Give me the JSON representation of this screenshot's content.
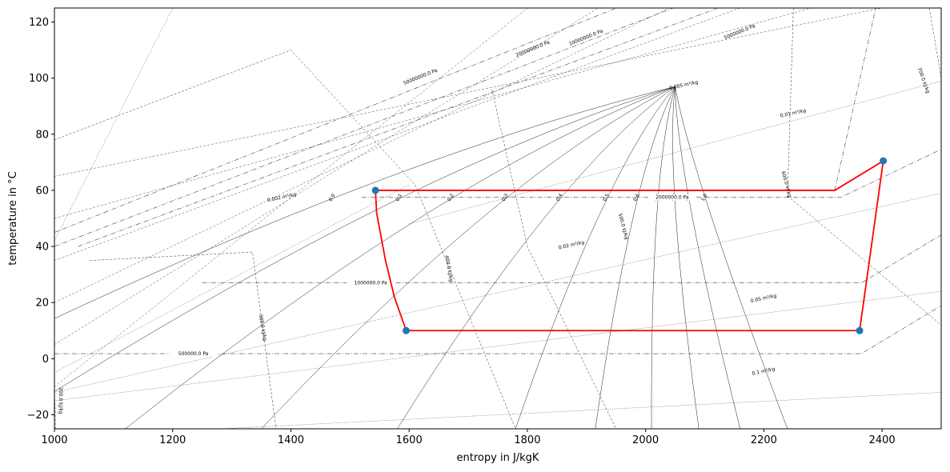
{
  "chart_data": {
    "type": "line",
    "title": "",
    "xlabel": "entropy in J/kgK",
    "ylabel": "temperature in °C",
    "xlim": [
      1000,
      2500
    ],
    "ylim": [
      -25,
      125
    ],
    "xticks": [
      "1000",
      "1200",
      "1400",
      "1600",
      "1800",
      "2000",
      "2200",
      "2400"
    ],
    "yticks": [
      "−20",
      "0",
      "20",
      "40",
      "60",
      "80",
      "100",
      "120"
    ],
    "grid": false,
    "cycle": {
      "color": "#ff0000",
      "marker_color": "#1f77b4",
      "points": [
        {
          "s": 1543,
          "T": 60.0
        },
        {
          "s": 1545,
          "T": 52
        },
        {
          "s": 1560,
          "T": 35
        },
        {
          "s": 1575,
          "T": 22
        },
        {
          "s": 1595,
          "T": 10.0
        },
        {
          "s": 2362,
          "T": 10.0
        },
        {
          "s": 2402,
          "T": 70.5
        },
        {
          "s": 2320,
          "T": 60.0
        },
        {
          "s": 1543,
          "T": 60.0
        }
      ],
      "markers": [
        {
          "s": 1543,
          "T": 60.0
        },
        {
          "s": 1595,
          "T": 10.0
        },
        {
          "s": 2362,
          "T": 10.0
        },
        {
          "s": 2402,
          "T": 70.5
        }
      ]
    },
    "quality_lines": {
      "critical_point": {
        "s": 2050,
        "T": 97
      },
      "liquid_start": {
        "s": 1000,
        "T": 0
      },
      "liquid_end": {
        "s": 1543,
        "T": 60.0
      },
      "vapor_points": [
        {
          "s": 2362,
          "T": 10
        },
        {
          "s": 2330,
          "T": 40
        },
        {
          "s": 2275,
          "T": 65
        },
        {
          "s": 2200,
          "T": 85
        },
        {
          "s": 2130,
          "T": 95
        },
        {
          "s": 2050,
          "T": 97
        }
      ],
      "labels": [
        "0.0",
        "0.1",
        "0.2",
        "0.3",
        "0.4",
        "0.5",
        "0.6",
        "0.7",
        "0.8",
        "0.9",
        "1.0"
      ]
    },
    "isobars": [
      {
        "label": "500000.0 Pa",
        "T": 1.8,
        "s_start": 1000,
        "s_end": 2365
      },
      {
        "label": "1000000.0 Pa",
        "T": 27,
        "s_start": 1250,
        "s_end": 2365
      },
      {
        "label": "2000000.0 Pa",
        "T": 57.5,
        "s_start": 1520,
        "s_end": 2330
      },
      {
        "label": "5000000.0 Pa"
      },
      {
        "label": "10000000.0 Pa"
      },
      {
        "label": "20000000.0 Pa"
      },
      {
        "label": "50000000.0 Pa"
      }
    ],
    "isochor_labels": [
      "0.002 m³/kg",
      "0.005 m³/kg",
      "0.01 m³/kg",
      "0.02 m³/kg",
      "0.05 m³/kg",
      "0.1 m³/kg"
    ],
    "isenthalp_labels": [
      "200.0 kJ/kg",
      "300.0 kJ/kg",
      "400.0 kJ/kg",
      "500.0 kJ/kg",
      "600.0 kJ/kg",
      "700.0 kJ/kg"
    ]
  }
}
